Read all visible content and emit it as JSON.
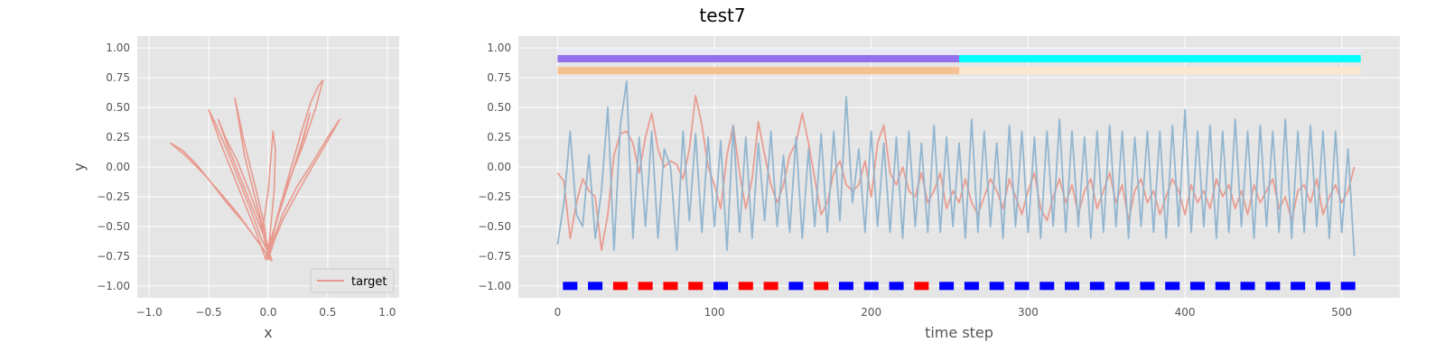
{
  "figure": {
    "suptitle": "test7"
  },
  "chart_data": [
    {
      "type": "line",
      "title": "",
      "xlabel": "x",
      "ylabel": "y",
      "xlim": [
        -1.1,
        1.1
      ],
      "ylim": [
        -1.1,
        1.1
      ],
      "xticks": [
        "−1.0",
        "−0.5",
        "0.0",
        "0.5",
        "1.0"
      ],
      "yticks": [
        "−1.00",
        "−0.75",
        "−0.50",
        "−0.25",
        "0.00",
        "0.25",
        "0.50",
        "0.75",
        "1.00"
      ],
      "grid": true,
      "legend": {
        "placement": "lower-right",
        "entries": [
          {
            "label": "target",
            "color": "#E8998D"
          }
        ]
      },
      "series": [
        {
          "name": "target",
          "color": "#E8998D",
          "x": [
            0.0,
            -0.05,
            -0.12,
            -0.22,
            -0.35,
            -0.48,
            -0.6,
            -0.72,
            -0.82,
            -0.7,
            -0.55,
            -0.4,
            -0.25,
            -0.12,
            -0.02,
            0.03,
            -0.02,
            -0.1,
            -0.2,
            -0.28,
            -0.2,
            -0.1,
            -0.03,
            0.0,
            0.05,
            0.12,
            0.2,
            0.3,
            0.4,
            0.5,
            0.6,
            0.5,
            0.38,
            0.25,
            0.12,
            0.03,
            0.0,
            0.08,
            0.18,
            0.28,
            0.36,
            0.42,
            0.46,
            0.4,
            0.3,
            0.18,
            0.08,
            0.02,
            -0.02,
            -0.1,
            -0.2,
            -0.3,
            -0.4,
            -0.5,
            -0.45,
            -0.35,
            -0.25,
            -0.15,
            -0.06,
            0.0,
            0.05,
            0.06,
            0.04,
            0.0,
            -0.05,
            -0.15,
            -0.25,
            -0.35,
            -0.42,
            -0.36,
            -0.26,
            -0.16,
            -0.07,
            -0.01,
            0.04,
            0.12,
            0.2,
            0.28,
            0.35,
            0.3,
            0.2,
            0.1,
            0.03,
            -0.02
          ],
          "y": [
            -0.75,
            -0.68,
            -0.58,
            -0.45,
            -0.3,
            -0.13,
            0.02,
            0.14,
            0.2,
            0.1,
            -0.05,
            -0.22,
            -0.4,
            -0.58,
            -0.72,
            -0.79,
            -0.6,
            -0.3,
            0.1,
            0.58,
            0.2,
            -0.2,
            -0.5,
            -0.78,
            -0.62,
            -0.45,
            -0.3,
            -0.12,
            0.05,
            0.22,
            0.4,
            0.25,
            0.05,
            -0.15,
            -0.4,
            -0.65,
            -0.76,
            -0.4,
            -0.05,
            0.3,
            0.55,
            0.68,
            0.73,
            0.5,
            0.2,
            -0.1,
            -0.4,
            -0.65,
            -0.78,
            -0.55,
            -0.3,
            -0.05,
            0.2,
            0.48,
            0.38,
            0.15,
            -0.1,
            -0.35,
            -0.6,
            -0.72,
            -0.2,
            0.15,
            0.3,
            -0.2,
            -0.55,
            -0.3,
            -0.05,
            0.2,
            0.4,
            0.25,
            0.05,
            -0.2,
            -0.45,
            -0.7,
            -0.55,
            -0.3,
            -0.05,
            0.2,
            0.45,
            0.25,
            -0.05,
            -0.35,
            -0.6,
            -0.76
          ]
        }
      ]
    },
    {
      "type": "line",
      "title": "",
      "xlabel": "time step",
      "ylabel": "",
      "xlim": [
        -25,
        537
      ],
      "ylim": [
        -1.1,
        1.1
      ],
      "xticks": [
        0,
        100,
        200,
        300,
        400,
        500
      ],
      "yticks": [
        "−1.00",
        "−0.75",
        "−0.50",
        "−0.25",
        "0.00",
        "0.25",
        "0.50",
        "0.75",
        "1.00"
      ],
      "grid": true,
      "series": [
        {
          "color": "#E8998D",
          "x_start": 0,
          "x_step": 4,
          "values": [
            -0.05,
            -0.12,
            -0.6,
            -0.3,
            -0.1,
            -0.2,
            -0.25,
            -0.7,
            -0.4,
            0.1,
            0.28,
            0.3,
            0.2,
            -0.05,
            0.25,
            0.45,
            0.15,
            0.0,
            0.05,
            0.02,
            -0.1,
            0.15,
            0.6,
            0.35,
            0.0,
            -0.15,
            -0.35,
            0.1,
            0.35,
            -0.05,
            -0.35,
            -0.1,
            0.38,
            0.1,
            -0.15,
            -0.3,
            -0.15,
            0.1,
            0.2,
            0.45,
            0.2,
            -0.1,
            -0.4,
            -0.3,
            -0.05,
            0.05,
            -0.15,
            -0.2,
            -0.15,
            0.05,
            -0.25,
            0.2,
            0.35,
            -0.05,
            -0.15,
            0.0,
            -0.2,
            -0.25,
            -0.05,
            -0.3,
            -0.2,
            -0.05,
            -0.35,
            -0.2,
            -0.3,
            -0.1,
            -0.3,
            -0.4,
            -0.25,
            -0.1,
            -0.2,
            -0.35,
            -0.1,
            -0.25,
            -0.4,
            -0.2,
            -0.05,
            -0.35,
            -0.45,
            -0.25,
            -0.1,
            -0.3,
            -0.15,
            -0.4,
            -0.2,
            -0.1,
            -0.35,
            -0.2,
            -0.05,
            -0.3,
            -0.15,
            -0.45,
            -0.2,
            -0.1,
            -0.3,
            -0.2,
            -0.4,
            -0.25,
            -0.1,
            -0.2,
            -0.4,
            -0.15,
            -0.3,
            -0.2,
            -0.35,
            -0.1,
            -0.25,
            -0.15,
            -0.35,
            -0.2,
            -0.4,
            -0.15,
            -0.3,
            -0.2,
            -0.1,
            -0.35,
            -0.25,
            -0.45,
            -0.2,
            -0.15,
            -0.3,
            -0.1,
            -0.4,
            -0.25,
            -0.15,
            -0.3,
            -0.2,
            0.0
          ]
        },
        {
          "color": "#8DB3CF",
          "x_start": 0,
          "x_step": 4,
          "values": [
            -0.65,
            -0.3,
            0.3,
            -0.4,
            -0.5,
            0.1,
            -0.6,
            -0.2,
            0.5,
            -0.7,
            0.35,
            0.72,
            -0.6,
            0.25,
            -0.5,
            0.3,
            -0.6,
            0.15,
            0.0,
            -0.7,
            0.3,
            -0.45,
            0.28,
            -0.55,
            0.25,
            -0.5,
            0.22,
            -0.7,
            0.35,
            -0.55,
            0.25,
            -0.6,
            0.2,
            -0.45,
            0.3,
            -0.5,
            0.1,
            -0.55,
            0.25,
            -0.6,
            0.15,
            -0.5,
            0.28,
            -0.55,
            0.3,
            -0.45,
            0.59,
            -0.3,
            0.15,
            -0.55,
            0.3,
            -0.5,
            0.2,
            -0.55,
            0.25,
            -0.6,
            0.3,
            -0.5,
            0.2,
            -0.55,
            0.35,
            -0.55,
            0.25,
            -0.5,
            0.2,
            -0.6,
            0.4,
            -0.55,
            0.3,
            -0.5,
            0.2,
            -0.6,
            0.35,
            -0.5,
            0.3,
            -0.55,
            0.25,
            -0.6,
            0.3,
            -0.5,
            0.4,
            -0.55,
            0.3,
            -0.5,
            0.25,
            -0.6,
            0.3,
            -0.55,
            0.35,
            -0.5,
            0.3,
            -0.6,
            0.25,
            -0.5,
            0.3,
            -0.55,
            0.3,
            -0.6,
            0.35,
            -0.5,
            0.48,
            -0.55,
            0.3,
            -0.5,
            0.35,
            -0.6,
            0.3,
            -0.55,
            0.4,
            -0.5,
            0.3,
            -0.6,
            0.35,
            -0.5,
            0.3,
            -0.55,
            0.4,
            -0.6,
            0.3,
            -0.55,
            0.35,
            -0.5,
            0.3,
            -0.6,
            0.3,
            -0.55,
            0.15,
            -0.75
          ]
        }
      ],
      "color_bars": [
        {
          "y": 0.96,
          "segments": [
            {
              "x0": 0,
              "x1": 512,
              "color": "#E8E8F4"
            }
          ]
        },
        {
          "y": 0.91,
          "segments": [
            {
              "x0": 0,
              "x1": 256,
              "color": "#9370EE"
            },
            {
              "x0": 256,
              "x1": 512,
              "color": "#00FFFF"
            }
          ]
        },
        {
          "y": 0.81,
          "segments": [
            {
              "x0": 0,
              "x1": 256,
              "color": "#F6C090"
            },
            {
              "x0": 256,
              "x1": 512,
              "color": "#FBE6D0"
            }
          ]
        }
      ],
      "markers": {
        "y": -1.0,
        "x_start": 8,
        "x_step": 16,
        "colors": [
          "blue",
          "blue",
          "red",
          "red",
          "red",
          "red",
          "blue",
          "red",
          "red",
          "blue",
          "red",
          "blue",
          "blue",
          "blue",
          "red",
          "blue",
          "blue",
          "blue",
          "blue",
          "blue",
          "blue",
          "blue",
          "blue",
          "blue",
          "blue",
          "blue",
          "blue",
          "blue",
          "blue",
          "blue",
          "blue",
          "blue"
        ]
      }
    }
  ]
}
